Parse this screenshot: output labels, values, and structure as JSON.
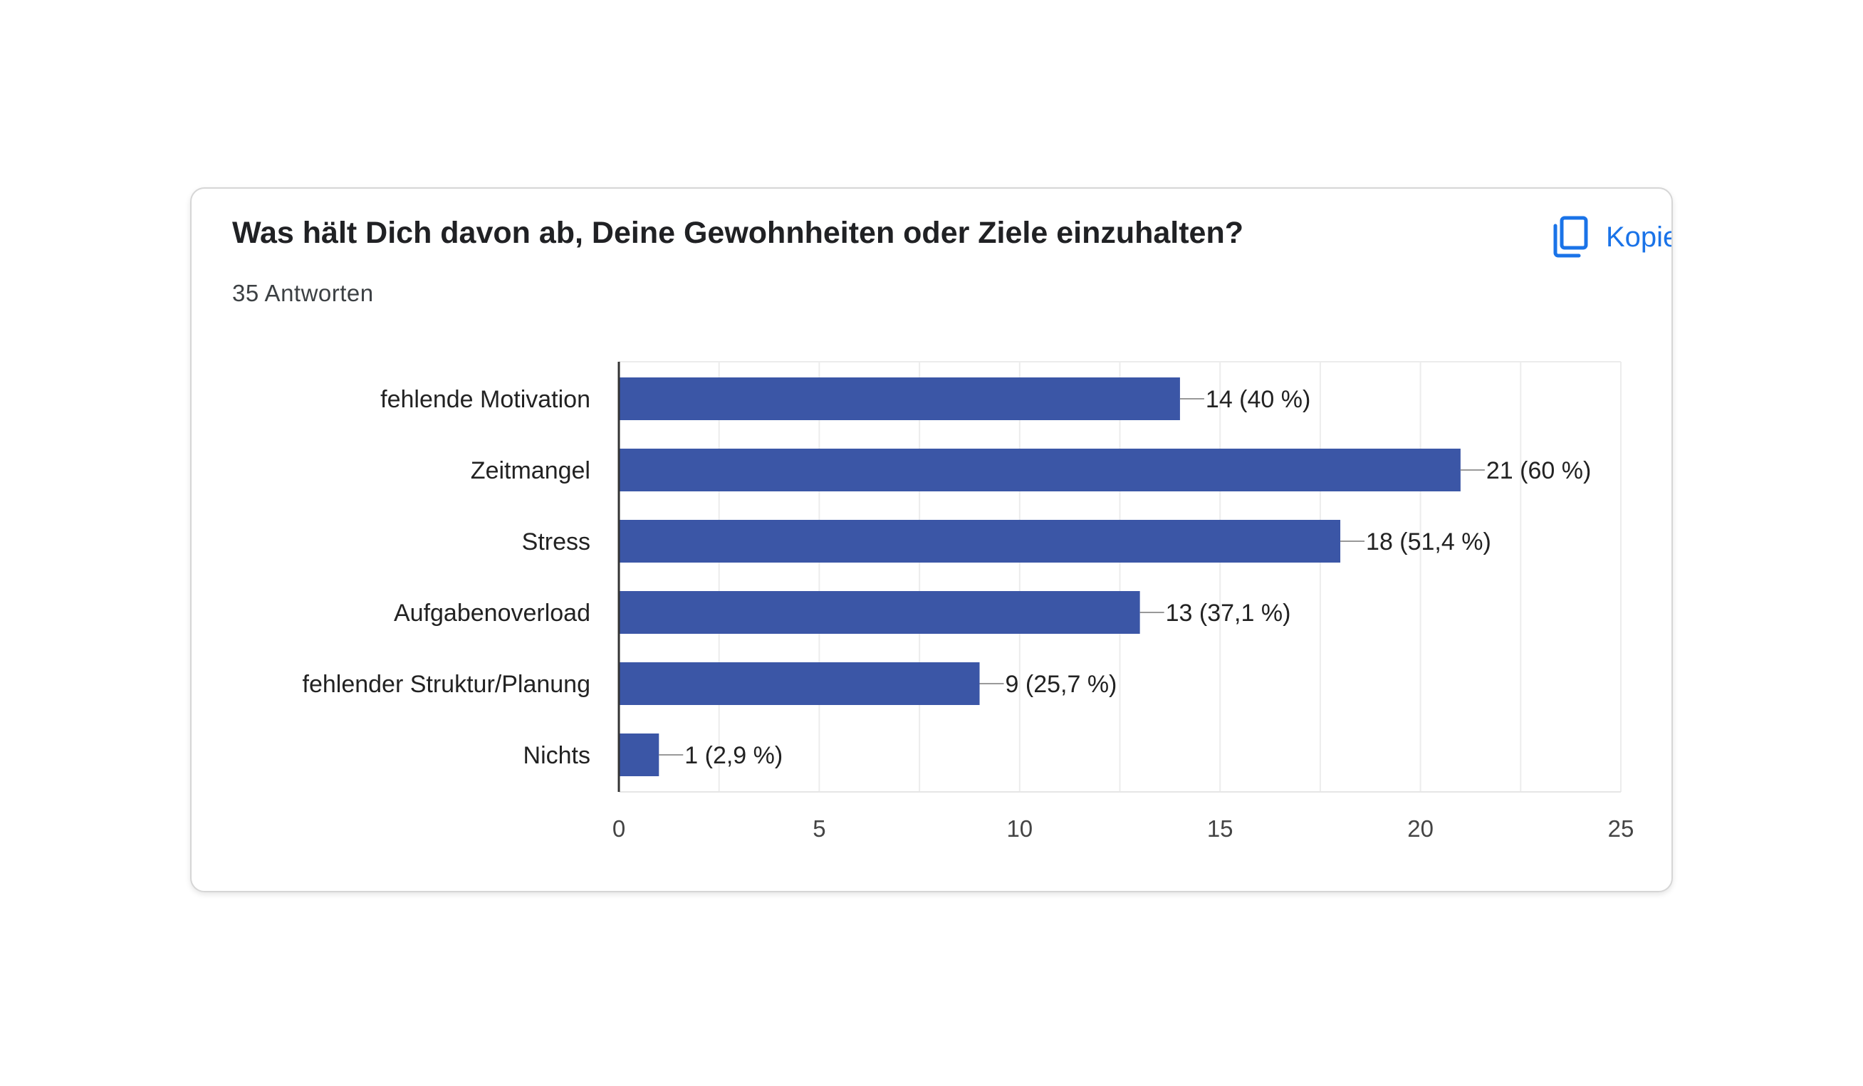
{
  "question": {
    "title": "Was hält Dich davon ab, Deine Gewohnheiten oder Ziele einzuhalten?",
    "responses": "35 Antworten"
  },
  "toolbar": {
    "copy_label": "Kopieren",
    "copy_icon": "copy-icon"
  },
  "colors": {
    "bar": "#3b56a6",
    "accent": "#1a73e8"
  },
  "chart_data": {
    "type": "bar",
    "orientation": "horizontal",
    "categories": [
      "fehlende Motivation",
      "Zeitmangel",
      "Stress",
      "Aufgabenoverload",
      "fehlender Struktur/Planung",
      "Nichts"
    ],
    "values": [
      14,
      21,
      18,
      13,
      9,
      1
    ],
    "data_labels": [
      "14 (40 %)",
      "21 (60 %)",
      "18 (51,4 %)",
      "13 (37,1 %)",
      "9 (25,7 %)",
      "1 (2,9 %)"
    ],
    "xticks": [
      "0",
      "5",
      "10",
      "15",
      "20",
      "25"
    ],
    "xlim": [
      0,
      25
    ],
    "grid": true,
    "title": "",
    "xlabel": "",
    "ylabel": ""
  }
}
